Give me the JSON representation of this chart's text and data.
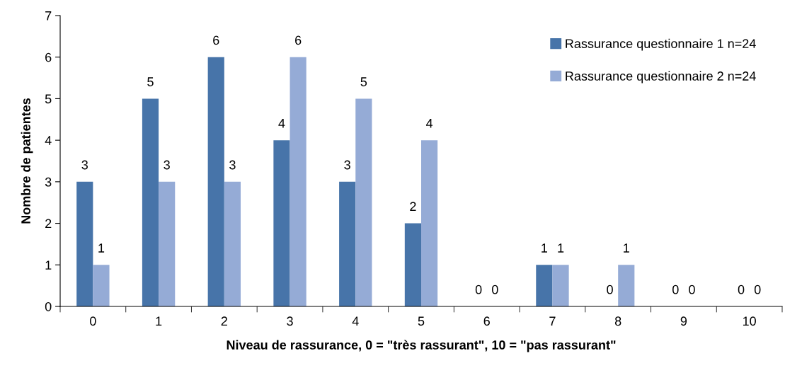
{
  "chart_data": {
    "type": "bar",
    "xlabel": "Niveau de rassurance, 0 = \"très rassurant\", 10 = \"pas rassurant\"",
    "ylabel": "Nombre de patientes",
    "categories": [
      "0",
      "1",
      "2",
      "3",
      "4",
      "5",
      "6",
      "7",
      "8",
      "9",
      "10"
    ],
    "series": [
      {
        "name": "Rassurance questionnaire 1 n=24",
        "color": "#4774a9",
        "values": [
          3,
          5,
          6,
          4,
          3,
          2,
          0,
          1,
          0,
          0,
          0
        ]
      },
      {
        "name": "Rassurance questionnaire 2 n=24",
        "color": "#95abd6",
        "values": [
          1,
          3,
          3,
          6,
          5,
          4,
          0,
          1,
          1,
          0,
          0
        ]
      }
    ],
    "ylim": [
      0,
      7
    ],
    "yticks": [
      0,
      1,
      2,
      3,
      4,
      5,
      6,
      7
    ],
    "data_labels": true,
    "legend": "top right",
    "grid": false
  }
}
